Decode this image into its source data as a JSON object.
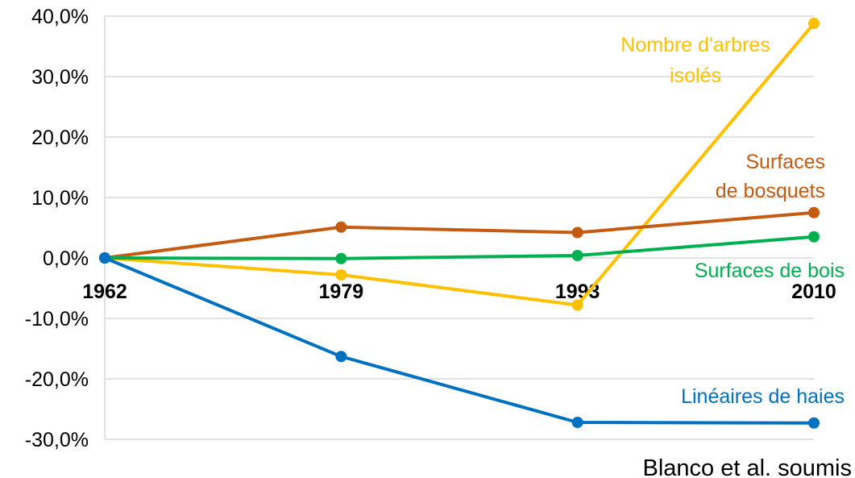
{
  "chart_data": {
    "type": "line",
    "x": [
      "1962",
      "1979",
      "1993",
      "2010"
    ],
    "ylim": [
      -30,
      40
    ],
    "yticks": [
      -30,
      -20,
      -10,
      0,
      10,
      20,
      30,
      40
    ],
    "ytick_labels": [
      "-30,0%",
      "-20,0%",
      "-10,0%",
      "0,0%",
      "10,0%",
      "20,0%",
      "30,0%",
      "40,0%"
    ],
    "y_unit": "%",
    "grid": true,
    "series": [
      {
        "name": "Nombre d'arbres isolés",
        "label_lines": [
          "Nombre d'arbres",
          "isolés"
        ],
        "color": "#FFC000",
        "values": [
          0,
          -2.8,
          -7.8,
          38.8
        ]
      },
      {
        "name": "Surfaces de bosquets",
        "label_lines": [
          "Surfaces",
          "de bosquets"
        ],
        "color": "#C55A11",
        "values": [
          0,
          5.1,
          4.2,
          7.5
        ]
      },
      {
        "name": "Surfaces de bois",
        "label_lines": [
          "Surfaces de bois"
        ],
        "color": "#00B050",
        "values": [
          0,
          -0.1,
          0.4,
          3.5
        ]
      },
      {
        "name": "Linéaires de haies",
        "label_lines": [
          "Linéaires de haies"
        ],
        "color": "#0070C0",
        "values": [
          0,
          -16.3,
          -27.2,
          -27.3
        ]
      }
    ],
    "source": "Blanco et al. soumis"
  }
}
